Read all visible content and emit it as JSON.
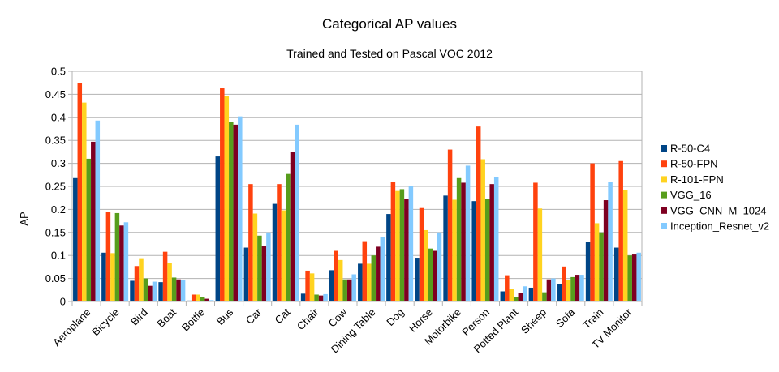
{
  "chart_data": {
    "type": "bar",
    "title": "Categorical AP values",
    "subtitle": "Trained and Tested on Pascal VOC 2012",
    "xlabel": "",
    "ylabel": "AP",
    "ylim": [
      0,
      0.5
    ],
    "yticks": [
      "0",
      "0.05",
      "0.1",
      "0.15",
      "0.2",
      "0.25",
      "0.3",
      "0.35",
      "0.4",
      "0.45",
      "0.5"
    ],
    "grid": true,
    "legend_position": "right",
    "categories": [
      "Aeroplane",
      "Bicycle",
      "Bird",
      "Boat",
      "Bottle",
      "Bus",
      "Car",
      "Cat",
      "Chair",
      "Cow",
      "Dining Table",
      "Dog",
      "Horse",
      "Motorbike",
      "Person",
      "Potted Plant",
      "Sheep",
      "Sofa",
      "Train",
      "TV Monitor"
    ],
    "series": [
      {
        "name": "R-50-C4",
        "color": "#004586",
        "values": [
          0.268,
          0.106,
          0.045,
          0.042,
          0.002,
          0.315,
          0.117,
          0.212,
          0.017,
          0.068,
          0.082,
          0.19,
          0.095,
          0.23,
          0.218,
          0.022,
          0.03,
          0.038,
          0.13,
          0.117
        ]
      },
      {
        "name": "R-50-FPN",
        "color": "#ff420e",
        "values": [
          0.475,
          0.194,
          0.077,
          0.108,
          0.015,
          0.463,
          0.255,
          0.255,
          0.067,
          0.11,
          0.131,
          0.26,
          0.203,
          0.33,
          0.38,
          0.057,
          0.258,
          0.076,
          0.3,
          0.305
        ]
      },
      {
        "name": "R-101-FPN",
        "color": "#ffd320",
        "values": [
          0.432,
          0.105,
          0.094,
          0.084,
          0.015,
          0.447,
          0.191,
          0.198,
          0.061,
          0.09,
          0.082,
          0.24,
          0.155,
          0.221,
          0.309,
          0.027,
          0.202,
          0.047,
          0.17,
          0.242
        ]
      },
      {
        "name": "VGG_16",
        "color": "#579d1c",
        "values": [
          0.31,
          0.192,
          0.05,
          0.052,
          0.01,
          0.39,
          0.143,
          0.277,
          0.015,
          0.048,
          0.1,
          0.244,
          0.115,
          0.268,
          0.223,
          0.01,
          0.02,
          0.053,
          0.15,
          0.1
        ]
      },
      {
        "name": "VGG_CNN_M_1024",
        "color": "#7e0021",
        "values": [
          0.347,
          0.165,
          0.034,
          0.048,
          0.006,
          0.384,
          0.121,
          0.325,
          0.013,
          0.048,
          0.119,
          0.222,
          0.11,
          0.258,
          0.255,
          0.018,
          0.048,
          0.058,
          0.22,
          0.102
        ]
      },
      {
        "name": "Inception_Resnet_v2",
        "color": "#83caff",
        "values": [
          0.393,
          0.172,
          0.043,
          0.047,
          0.003,
          0.402,
          0.15,
          0.384,
          0.016,
          0.059,
          0.14,
          0.25,
          0.15,
          0.295,
          0.271,
          0.033,
          0.05,
          0.058,
          0.26,
          0.106
        ]
      }
    ]
  }
}
